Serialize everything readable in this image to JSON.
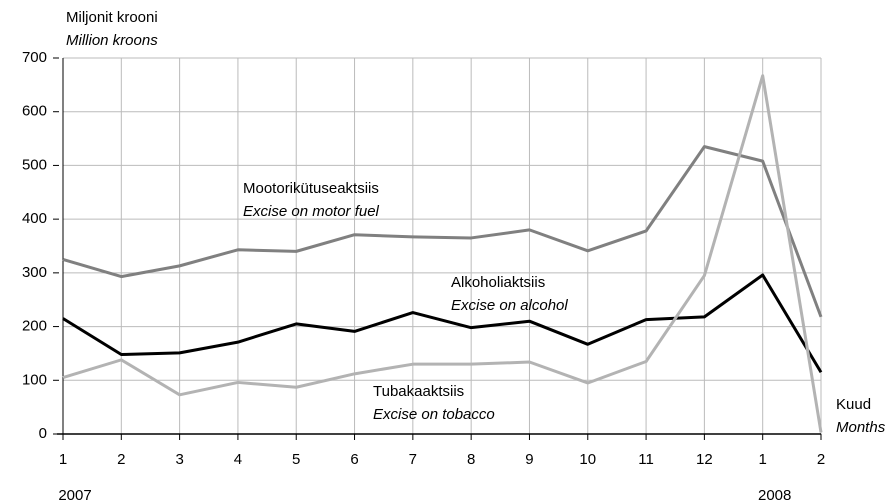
{
  "chart_data": {
    "type": "line",
    "y_label": "Miljonit krooni",
    "y_label_en": "Million kroons",
    "x_label": "Kuud",
    "x_label_en": "Months",
    "categories": [
      "1",
      "2",
      "3",
      "4",
      "5",
      "6",
      "7",
      "8",
      "9",
      "10",
      "11",
      "12",
      "1",
      "2"
    ],
    "years": [
      "2007",
      null,
      null,
      null,
      null,
      null,
      null,
      null,
      null,
      null,
      null,
      null,
      "2008",
      null
    ],
    "ylim": [
      0,
      700
    ],
    "yticks": [
      0,
      100,
      200,
      300,
      400,
      500,
      600,
      700
    ],
    "grid": true,
    "series": [
      {
        "name": "Mootorikütuseaktsiis",
        "name_en": "Excise on motor fuel",
        "color": "#808080",
        "values": [
          325,
          293,
          313,
          343,
          340,
          371,
          367,
          365,
          380,
          341,
          378,
          535,
          508,
          218
        ]
      },
      {
        "name": "Alkoholiaktsiis",
        "name_en": "Excise on alcohol",
        "color": "#000000",
        "values": [
          215,
          148,
          151,
          171,
          205,
          191,
          226,
          198,
          210,
          167,
          213,
          218,
          296,
          115
        ]
      },
      {
        "name": "Tubakaaktsiis",
        "name_en": "Excise on tobacco",
        "color": "#b3b3b3",
        "values": [
          105,
          138,
          73,
          96,
          87,
          112,
          130,
          130,
          134,
          95,
          135,
          295,
          667,
          3
        ]
      }
    ]
  }
}
